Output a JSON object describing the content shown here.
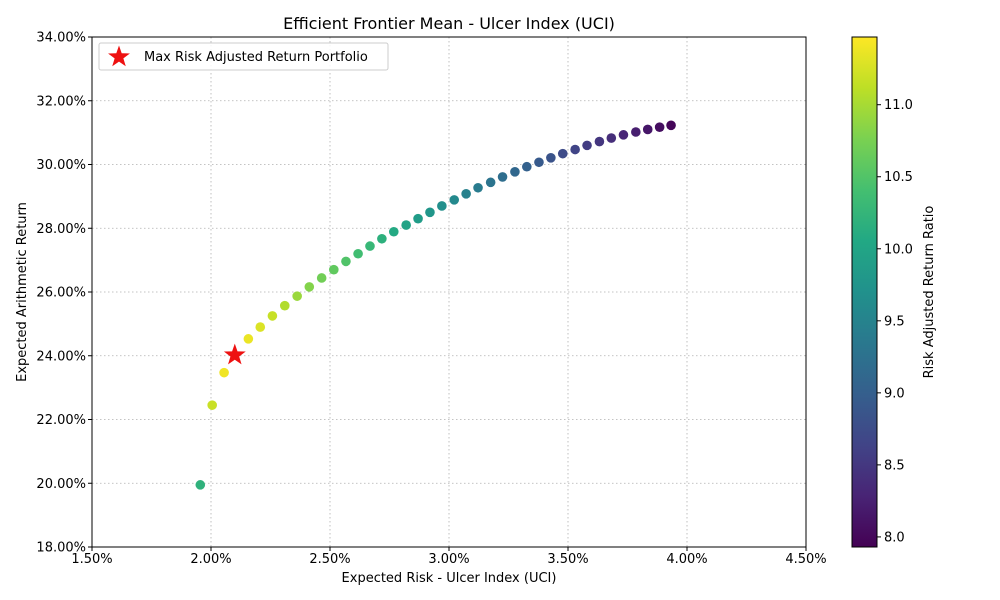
{
  "chart_data": {
    "type": "scatter",
    "title": "Efficient Frontier Mean - Ulcer Index (UCI)",
    "xlabel": "Expected Risk - Ulcer Index (UCI)",
    "ylabel": "Expected Arithmetic Return",
    "xlim": [
      0.015,
      0.045
    ],
    "ylim": [
      0.18,
      0.34
    ],
    "x_ticks": [
      0.015,
      0.02,
      0.025,
      0.03,
      0.035,
      0.04,
      0.045
    ],
    "x_tick_labels": [
      "1.50%",
      "2.00%",
      "2.50%",
      "3.00%",
      "3.50%",
      "4.00%",
      "4.50%"
    ],
    "y_ticks": [
      0.18,
      0.2,
      0.22,
      0.24,
      0.26,
      0.28,
      0.3,
      0.32,
      0.34
    ],
    "y_tick_labels": [
      "18.00%",
      "20.00%",
      "22.00%",
      "24.00%",
      "26.00%",
      "28.00%",
      "30.00%",
      "32.00%",
      "34.00%"
    ],
    "grid": true,
    "legend": {
      "position": "top-left",
      "label": "Max Risk Adjusted Return Portfolio",
      "marker": "star",
      "color": "#ee1111"
    },
    "colorbar": {
      "label": "Risk Adjusted Return Ratio",
      "range": [
        7.93,
        11.47
      ],
      "ticks": [
        8.0,
        8.5,
        9.0,
        9.5,
        10.0,
        10.5,
        11.0
      ],
      "tick_labels": [
        "8.0",
        "8.5",
        "9.0",
        "9.5",
        "10.0",
        "10.5",
        "11.0"
      ],
      "colormap": "viridis"
    },
    "max_portfolio": {
      "x": 0.021,
      "y": 0.2402
    },
    "points": [
      {
        "x": 0.01955,
        "y": 0.1995,
        "ratio": 10.2
      },
      {
        "x": 0.02005,
        "y": 0.2245,
        "ratio": 11.18
      },
      {
        "x": 0.02055,
        "y": 0.2347,
        "ratio": 11.4
      },
      {
        "x": 0.02157,
        "y": 0.2453,
        "ratio": 11.37
      },
      {
        "x": 0.02207,
        "y": 0.249,
        "ratio": 11.28
      },
      {
        "x": 0.02258,
        "y": 0.2525,
        "ratio": 11.17
      },
      {
        "x": 0.0231,
        "y": 0.2557,
        "ratio": 11.05
      },
      {
        "x": 0.02362,
        "y": 0.2587,
        "ratio": 10.93
      },
      {
        "x": 0.02413,
        "y": 0.2616,
        "ratio": 10.81
      },
      {
        "x": 0.02465,
        "y": 0.2644,
        "ratio": 10.7
      },
      {
        "x": 0.02516,
        "y": 0.267,
        "ratio": 10.6
      },
      {
        "x": 0.02567,
        "y": 0.2696,
        "ratio": 10.49
      },
      {
        "x": 0.02618,
        "y": 0.272,
        "ratio": 10.38
      },
      {
        "x": 0.02668,
        "y": 0.2744,
        "ratio": 10.28
      },
      {
        "x": 0.02718,
        "y": 0.2767,
        "ratio": 10.17
      },
      {
        "x": 0.02768,
        "y": 0.2789,
        "ratio": 10.07
      },
      {
        "x": 0.0282,
        "y": 0.281,
        "ratio": 9.97
      },
      {
        "x": 0.0287,
        "y": 0.283,
        "ratio": 9.87
      },
      {
        "x": 0.0292,
        "y": 0.285,
        "ratio": 9.77
      },
      {
        "x": 0.0297,
        "y": 0.287,
        "ratio": 9.67
      },
      {
        "x": 0.03022,
        "y": 0.2889,
        "ratio": 9.58
      },
      {
        "x": 0.03072,
        "y": 0.2908,
        "ratio": 9.48
      },
      {
        "x": 0.03122,
        "y": 0.2927,
        "ratio": 9.39
      },
      {
        "x": 0.03175,
        "y": 0.2944,
        "ratio": 9.29
      },
      {
        "x": 0.03225,
        "y": 0.2961,
        "ratio": 9.2
      },
      {
        "x": 0.03277,
        "y": 0.2977,
        "ratio": 9.11
      },
      {
        "x": 0.03327,
        "y": 0.2993,
        "ratio": 9.02
      },
      {
        "x": 0.03378,
        "y": 0.3007,
        "ratio": 8.93
      },
      {
        "x": 0.03428,
        "y": 0.3021,
        "ratio": 8.83
      },
      {
        "x": 0.03478,
        "y": 0.3034,
        "ratio": 8.74
      },
      {
        "x": 0.0353,
        "y": 0.3047,
        "ratio": 8.65
      },
      {
        "x": 0.0358,
        "y": 0.306,
        "ratio": 8.56
      },
      {
        "x": 0.03632,
        "y": 0.3072,
        "ratio": 8.48
      },
      {
        "x": 0.03682,
        "y": 0.3083,
        "ratio": 8.39
      },
      {
        "x": 0.03733,
        "y": 0.3093,
        "ratio": 8.3
      },
      {
        "x": 0.03785,
        "y": 0.3102,
        "ratio": 8.22
      },
      {
        "x": 0.03835,
        "y": 0.311,
        "ratio": 8.14
      },
      {
        "x": 0.03885,
        "y": 0.3117,
        "ratio": 8.06
      },
      {
        "x": 0.03933,
        "y": 0.3123,
        "ratio": 7.98
      }
    ]
  }
}
